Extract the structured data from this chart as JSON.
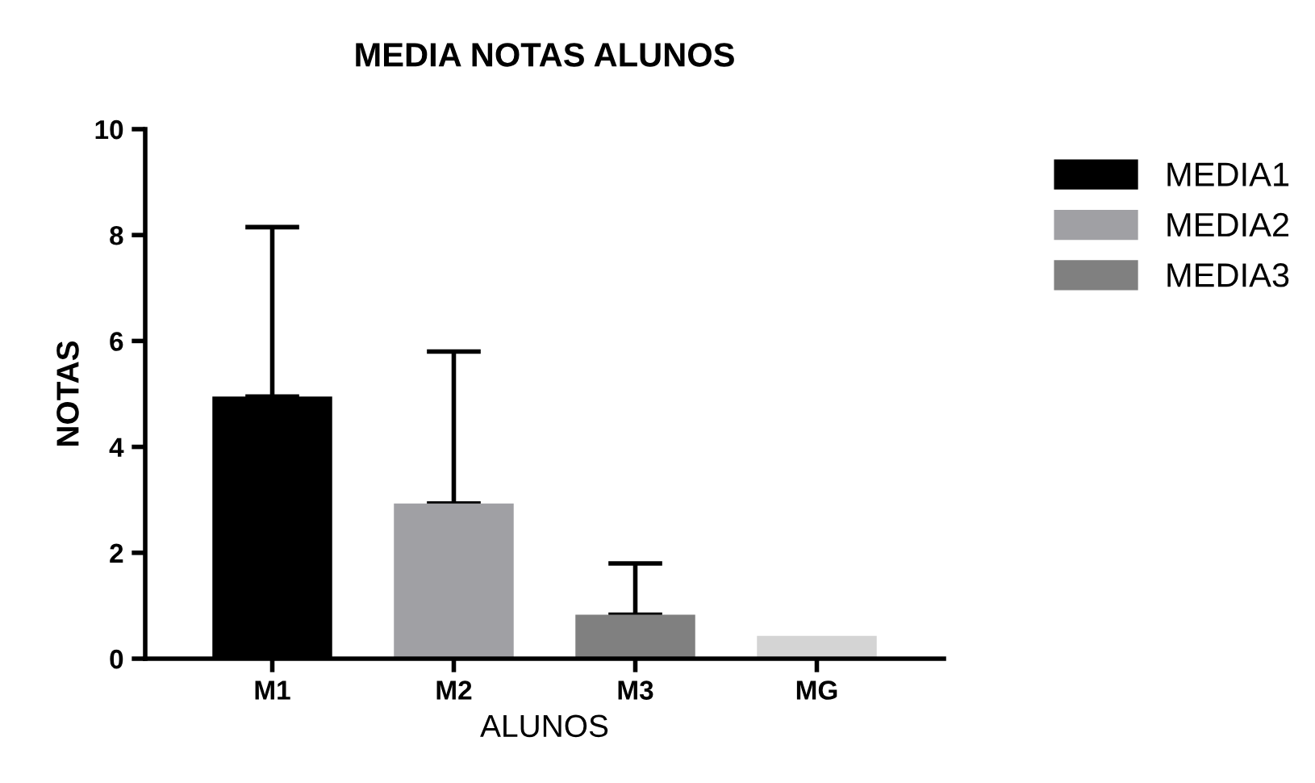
{
  "chart_data": {
    "type": "bar",
    "title": "MEDIA NOTAS ALUNOS",
    "xlabel": "ALUNOS",
    "ylabel": "NOTAS",
    "categories": [
      "M1",
      "M2",
      "M3",
      "MG"
    ],
    "series": [
      {
        "name": "MEDIA1",
        "color": "#000000",
        "values": [
          4.95,
          null,
          null,
          null
        ],
        "errors": [
          [
            4.95,
            8.15
          ],
          null,
          null,
          null
        ]
      },
      {
        "name": "MEDIA2",
        "color": "#a0a0a4",
        "values": [
          null,
          2.93,
          null,
          null
        ],
        "errors": [
          null,
          [
            2.93,
            5.8
          ],
          null,
          null
        ]
      },
      {
        "name": "MEDIA3",
        "color": "#808080",
        "values": [
          null,
          null,
          0.83,
          null
        ],
        "errors": [
          null,
          null,
          [
            0.83,
            1.8
          ],
          null
        ]
      },
      {
        "color": "#d4d4d4",
        "values": [
          null,
          null,
          null,
          0.43
        ]
      }
    ],
    "ylim": [
      0,
      10
    ],
    "yticks": [
      0,
      2,
      4,
      6,
      8,
      10
    ],
    "grid": false,
    "legend": "top right"
  }
}
